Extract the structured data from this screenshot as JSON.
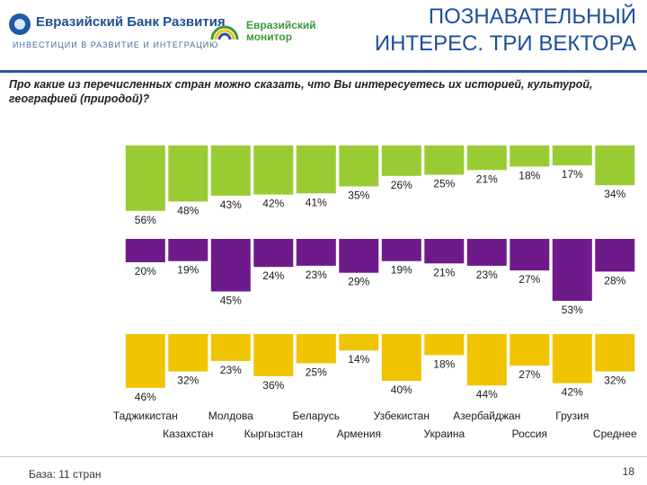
{
  "header": {
    "bank_name": "Евразийский Банк Развития",
    "bank_tagline": "ИНВЕСТИЦИИ В РАЗВИТИЕ И ИНТЕГРАЦИЮ",
    "monitor_name_1": "Евразийский",
    "monitor_name_2": "монитор",
    "title_line1": "ПОЗНАВАТЕЛЬНЫЙ",
    "title_line2": "ИНТЕРЕС. ТРИ ВЕКТОРА"
  },
  "question": "Про какие из перечисленных стран можно сказать, что Вы интересуетесь их историей, культурой, географией (природой)?",
  "footer": {
    "base": "База: 11 стран",
    "page_number": "18"
  },
  "colors": {
    "green": "#99cc33",
    "purple": "#6e1a8a",
    "yellow": "#f0c400",
    "header_blue": "#1a4f9c"
  },
  "chart_data": {
    "type": "bar",
    "categories": [
      "Таджикистан",
      "Казахстан",
      "Молдова",
      "Кыргызстан",
      "Беларусь",
      "Армения",
      "Узбекистан",
      "Украина",
      "Азербайджан",
      "Россия",
      "Грузия",
      "Среднее"
    ],
    "series": [
      {
        "values": [
          56,
          48,
          43,
          42,
          41,
          35,
          26,
          25,
          21,
          18,
          17,
          34
        ],
        "labels": [
          "56%",
          "48%",
          "43%",
          "42%",
          "41%",
          "35%",
          "26%",
          "25%",
          "21%",
          "18%",
          "17%",
          "34%"
        ],
        "color": "#99cc33"
      },
      {
        "values": [
          20,
          19,
          45,
          24,
          23,
          29,
          19,
          21,
          23,
          27,
          53,
          28
        ],
        "labels": [
          "20%",
          "19%",
          "45%",
          "24%",
          "23%",
          "29%",
          "19%",
          "21%",
          "23%",
          "27%",
          "53%",
          "28%"
        ],
        "color": "#6e1a8a"
      },
      {
        "values": [
          46,
          32,
          23,
          36,
          25,
          14,
          40,
          18,
          44,
          27,
          42,
          32
        ],
        "labels": [
          "46%",
          "32%",
          "23%",
          "36%",
          "25%",
          "14%",
          "40%",
          "18%",
          "44%",
          "27%",
          "42%",
          "32%"
        ],
        "color": "#f0c400"
      }
    ],
    "ylim": [
      0,
      56
    ],
    "grid": false,
    "legend": "none",
    "title": "",
    "xlabel": "",
    "ylabel": ""
  }
}
